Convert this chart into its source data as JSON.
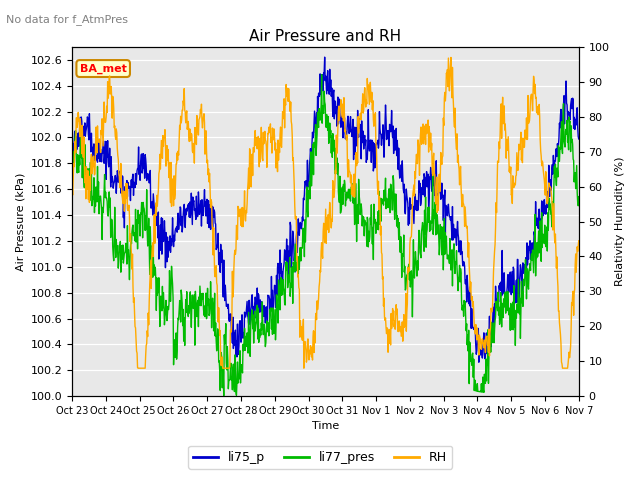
{
  "title": "Air Pressure and RH",
  "subtitle": "No data for f_AtmPres",
  "annotation": "BA_met",
  "xlabel": "Time",
  "ylabel_left": "Air Pressure (kPa)",
  "ylabel_right": "Relativity Humidity (%)",
  "ylim_left": [
    100.0,
    102.7
  ],
  "ylim_right": [
    0,
    100
  ],
  "yticks_left": [
    100.0,
    100.2,
    100.4,
    100.6,
    100.8,
    101.0,
    101.2,
    101.4,
    101.6,
    101.8,
    102.0,
    102.2,
    102.4,
    102.6
  ],
  "yticks_right": [
    0,
    10,
    20,
    30,
    40,
    50,
    60,
    70,
    80,
    90,
    100
  ],
  "x_labels": [
    "Oct 23",
    "Oct 24",
    "Oct 25",
    "Oct 26",
    "Oct 27",
    "Oct 28",
    "Oct 29",
    "Oct 30",
    "Oct 31",
    "Nov 1",
    "Nov 2",
    "Nov 3",
    "Nov 4",
    "Nov 5",
    "Nov 6",
    "Nov 7"
  ],
  "color_li75p": "#0000cc",
  "color_li77pres": "#00bb00",
  "color_rh": "#ffaa00",
  "legend_labels": [
    "li75_p",
    "li77_pres",
    "RH"
  ],
  "bg_color": "#e8e8e8",
  "line_width": 1.0,
  "title_fontsize": 11,
  "label_fontsize": 8,
  "tick_fontsize": 8
}
